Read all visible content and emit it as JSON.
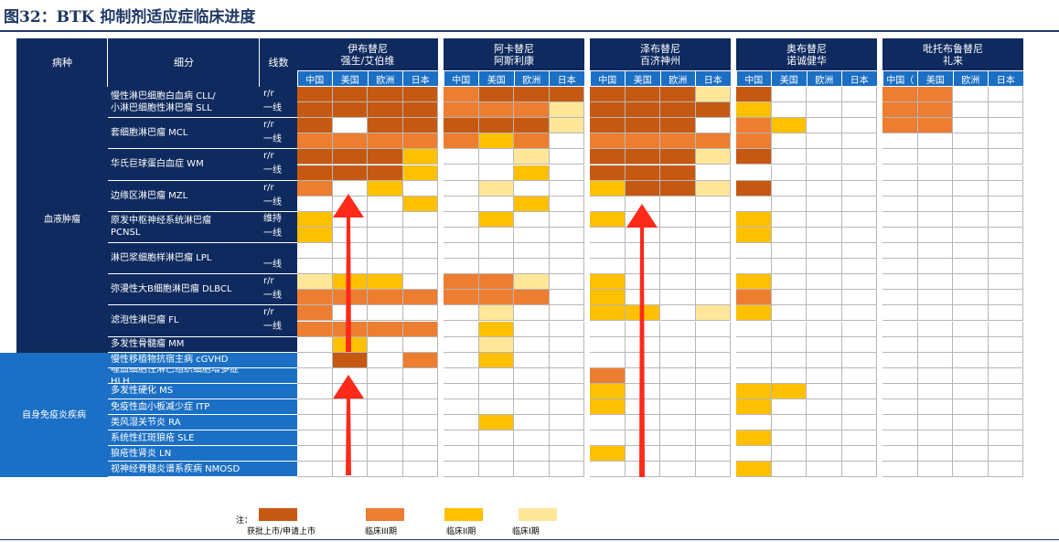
{
  "title": "图32：BTK 抑制剂适应症临床进度",
  "header": {
    "disease": "病种",
    "subtype": "细分",
    "line": "线数",
    "regions": [
      "中国",
      "美国",
      "欧洲",
      "日本"
    ],
    "drugs": [
      {
        "name": "伊布替尼",
        "company": "强生/艾伯维",
        "regions": [
          "中国",
          "美国",
          "欧洲",
          "日本"
        ]
      },
      {
        "name": "阿卡替尼",
        "company": "阿斯利康",
        "regions": [
          "中国",
          "美国",
          "欧洲",
          "日本"
        ]
      },
      {
        "name": "泽布替尼",
        "company": "百济神州",
        "regions": [
          "中国",
          "美国",
          "欧洲",
          "日本"
        ]
      },
      {
        "name": "奥布替尼",
        "company": "诺诚健华",
        "regions": [
          "中国",
          "美国",
          "欧洲",
          "日本"
        ]
      },
      {
        "name": "吡托布鲁替尼",
        "company": "礼来",
        "regions": [
          "中国（",
          "美国",
          "欧洲",
          "日本"
        ]
      }
    ]
  },
  "categories": [
    {
      "name": "血液肿瘤"
    },
    {
      "name": "自身免疫炎疾病"
    }
  ],
  "subtypes": [
    "慢性淋巴细胞白血病 CLL/\n小淋巴细胞性淋巴瘤 SLL",
    "套细胞淋巴瘤 MCL",
    "华氏巨球蛋白血症 WM",
    "边缘区淋巴瘤 MZL",
    "原发中枢神经系统淋巴瘤\nPCNSL",
    "淋巴浆细胞样淋巴瘤 LPL",
    "弥漫性大B细胞淋巴瘤 DLBCL",
    "滤泡性淋巴瘤 FL",
    "多发性骨髓瘤 MM",
    "慢性移植物抗宿主病 cGVHD",
    "噬血细胞性淋巴组织细胞增多症 HLH",
    "多发性硬化 MS",
    "免疫性血小板减少症 ITP",
    "类风湿关节炎 RA",
    "系统性红斑狼疮 SLE",
    "狼疮性肾炎 LN",
    "视神经脊髓炎谱系疾病 NMOSD"
  ],
  "line_labels": [
    "r/r\n一线",
    "r/r\n一线",
    "r/r\n一线",
    "r/r\n一线",
    "维持\n一线",
    "\n一线",
    "r/r\n一线",
    "r/r\n一线"
  ],
  "status_colors": {
    "A": "#c65911",
    "B": "#ed7d31",
    "C": "#ffc000",
    "D": "#ffe699"
  },
  "legend": {
    "note": "注：",
    "items": [
      {
        "code": "A",
        "label": "获批上市/申请上市"
      },
      {
        "code": "B",
        "label": "临床III期"
      },
      {
        "code": "C",
        "label": "临床II期"
      },
      {
        "code": "D",
        "label": "临床I期"
      }
    ]
  },
  "grid": [
    "AAAA BAAA AAAD A... BB..",
    "AAAA BBBD AAAA C... BB..",
    "A.AA AAAD AAA. BC.. BB..",
    "BBBB BCB. BBBB B... ....",
    "AAAC ..D. AAAD A... ....",
    "AAAC ..C. AAA. .... ....",
    "B.C. .D.. CAAD A... ....",
    "...C ..C. .... .... ....",
    "C... .C.. C... C... ....",
    "C... .... .... C... ....",
    ".... .... .... .... ....",
    ".... .... .... .... ....",
    "DCC. BBD. C... C... ....",
    "BBBB BBB. C... B... ....",
    "B... .D.. CC.D C... ....",
    "BBBB .C.. .... .... ....",
    ".C.. .D.. .... .... ....",
    ".A.B .C.. .... .... ....",
    ".... .... B... .... ....",
    ".... .... C... CC.. ....",
    ".... .... C... C... ....",
    ".... .C.. .... .... ....",
    ".... .... .... C... ....",
    ".... .... C... .... ....",
    ".... .... .... C... ...."
  ]
}
